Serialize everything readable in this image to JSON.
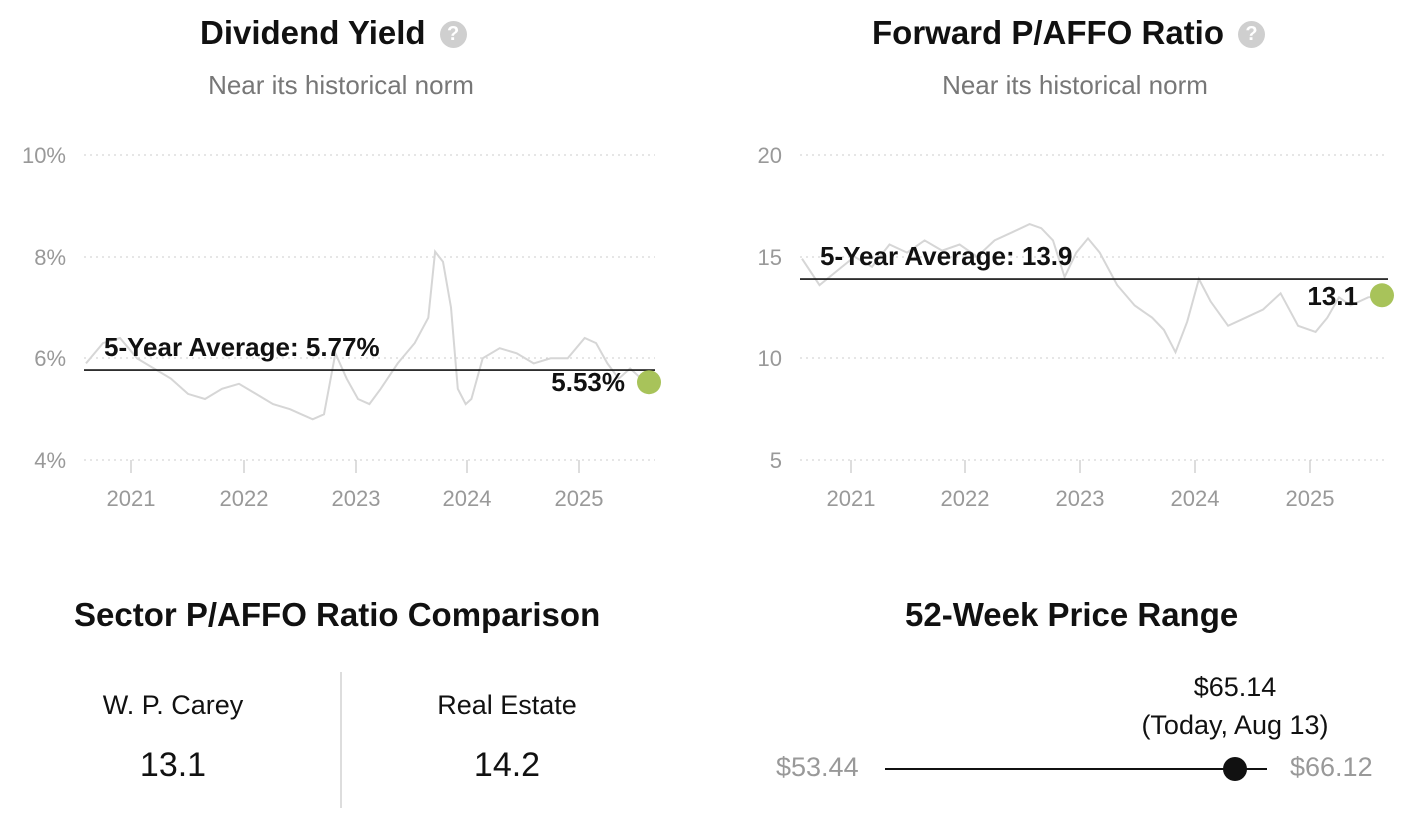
{
  "colors": {
    "accent": "#a8c35a",
    "line": "#d6d6d6",
    "grid": "#cccccc",
    "axis_text": "#999999"
  },
  "dividend_yield": {
    "title": "Dividend Yield",
    "subtitle": "Near its historical norm",
    "help_icon": "question-circle-icon",
    "average_label": "5-Year Average: 5.77%",
    "current_label": "5.53%",
    "tick_labels_y": [
      "10%",
      "8%",
      "6%",
      "4%"
    ],
    "tick_labels_x": [
      "2021",
      "2022",
      "2023",
      "2024",
      "2025"
    ]
  },
  "forward_paffo": {
    "title": "Forward P/AFFO Ratio",
    "subtitle": "Near its historical norm",
    "help_icon": "question-circle-icon",
    "average_label": "5-Year Average: 13.9",
    "current_label": "13.1",
    "tick_labels_y": [
      "20",
      "15",
      "10",
      "5"
    ],
    "tick_labels_x": [
      "2021",
      "2022",
      "2023",
      "2024",
      "2025"
    ]
  },
  "chart_data": [
    {
      "type": "line",
      "title": "Dividend Yield",
      "subtitle": "Near its historical norm",
      "x_unit": "year",
      "xlim": [
        2020.6,
        2025.62
      ],
      "ylim": [
        4,
        10
      ],
      "y_ticks": [
        4,
        6,
        8,
        10
      ],
      "x_ticks": [
        2021,
        2022,
        2023,
        2024,
        2025
      ],
      "grid": true,
      "average": 5.77,
      "current": 5.53,
      "series": [
        {
          "x": [
            2020.6,
            2020.75,
            2020.9,
            2021.05,
            2021.2,
            2021.35,
            2021.5,
            2021.65,
            2021.8,
            2021.95,
            2022.1,
            2022.25,
            2022.4,
            2022.5,
            2022.6,
            2022.7,
            2022.8,
            2022.9,
            2023.0,
            2023.1,
            2023.2,
            2023.35,
            2023.5,
            2023.62,
            2023.68,
            2023.75,
            2023.82,
            2023.88,
            2023.95,
            2024.0,
            2024.1,
            2024.25,
            2024.4,
            2024.55,
            2024.7,
            2024.85,
            2025.0,
            2025.1,
            2025.2,
            2025.3,
            2025.4,
            2025.5,
            2025.62
          ],
          "values": [
            5.9,
            6.3,
            6.4,
            6.0,
            5.8,
            5.6,
            5.3,
            5.2,
            5.4,
            5.5,
            5.3,
            5.1,
            5.0,
            4.9,
            4.8,
            4.9,
            6.1,
            5.6,
            5.2,
            5.1,
            5.4,
            5.9,
            6.3,
            6.8,
            8.1,
            7.9,
            7.0,
            5.4,
            5.1,
            5.2,
            6.0,
            6.2,
            6.1,
            5.9,
            6.0,
            6.0,
            6.4,
            6.3,
            5.9,
            5.6,
            5.8,
            5.6,
            5.53
          ]
        }
      ]
    },
    {
      "type": "line",
      "title": "Forward P/AFFO Ratio",
      "subtitle": "Near its historical norm",
      "x_unit": "year",
      "xlim": [
        2020.6,
        2025.62
      ],
      "ylim": [
        5,
        20
      ],
      "y_ticks": [
        5,
        10,
        15,
        20
      ],
      "x_ticks": [
        2021,
        2022,
        2023,
        2024,
        2025
      ],
      "grid": true,
      "average": 13.9,
      "current": 13.1,
      "series": [
        {
          "x": [
            2020.6,
            2020.75,
            2020.9,
            2021.05,
            2021.2,
            2021.35,
            2021.5,
            2021.65,
            2021.8,
            2021.95,
            2022.1,
            2022.25,
            2022.4,
            2022.55,
            2022.65,
            2022.75,
            2022.85,
            2022.95,
            2023.05,
            2023.15,
            2023.3,
            2023.45,
            2023.6,
            2023.7,
            2023.8,
            2023.9,
            2024.0,
            2024.1,
            2024.25,
            2024.4,
            2024.55,
            2024.7,
            2024.85,
            2025.0,
            2025.1,
            2025.2,
            2025.3,
            2025.45,
            2025.62
          ],
          "values": [
            14.9,
            13.6,
            14.3,
            15.0,
            14.5,
            15.6,
            15.2,
            15.8,
            15.3,
            15.6,
            15.0,
            15.8,
            16.2,
            16.6,
            16.4,
            15.8,
            14.0,
            15.2,
            15.9,
            15.2,
            13.6,
            12.6,
            12.0,
            11.4,
            10.3,
            11.8,
            13.9,
            12.8,
            11.6,
            12.0,
            12.4,
            13.2,
            11.6,
            11.3,
            12.0,
            13.0,
            12.6,
            13.0,
            13.1
          ]
        }
      ]
    }
  ],
  "sector": {
    "title": "Sector P/AFFO Ratio Comparison",
    "left_name": "W. P. Carey",
    "left_value": "13.1",
    "right_name": "Real Estate",
    "right_value": "14.2"
  },
  "price_range": {
    "title": "52-Week Price Range",
    "low": 53.44,
    "high": 66.12,
    "current": 65.14,
    "low_label": "$53.44",
    "high_label": "$66.12",
    "current_label": "$65.14",
    "date_label": "(Today, Aug 13)"
  }
}
